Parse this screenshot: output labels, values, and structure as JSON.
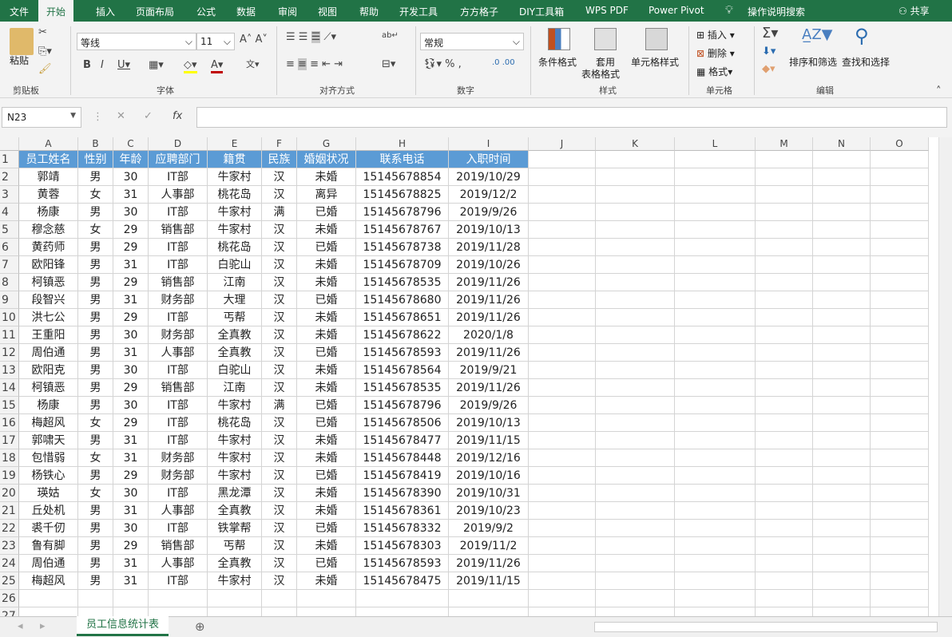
{
  "tabs": [
    "文件",
    "开始",
    "插入",
    "页面布局",
    "公式",
    "数据",
    "审阅",
    "视图",
    "帮助",
    "开发工具",
    "方方格子",
    "DIY工具箱",
    "WPS PDF",
    "Power Pivot"
  ],
  "search_label": "操作说明搜索",
  "share_label": "共享",
  "ribbon": {
    "paste": "粘贴",
    "clipboard": "剪贴板",
    "font_name": "等线",
    "font_size": "11",
    "font_group": "字体",
    "align_group": "对齐方式",
    "number_format": "常规",
    "number_group": "数字",
    "cond_format": "条件格式",
    "table_format_1": "套用",
    "table_format_2": "表格格式",
    "cell_style": "单元格样式",
    "styles_group": "样式",
    "insert": "插入",
    "delete": "删除",
    "format": "格式",
    "cells_group": "单元格",
    "sort_filter": "排序和筛选",
    "find_select": "查找和选择",
    "edit_group": "编辑"
  },
  "formula_bar": {
    "name_box": "N23",
    "formula": ""
  },
  "columns": [
    "A",
    "B",
    "C",
    "D",
    "E",
    "F",
    "G",
    "H",
    "I",
    "J",
    "K",
    "L",
    "M",
    "N",
    "O"
  ],
  "header_fill": "#5b9bd5",
  "table": {
    "headers": [
      "员工姓名",
      "性别",
      "年龄",
      "应聘部门",
      "籍贯",
      "民族",
      "婚姻状况",
      "联系电话",
      "入职时间"
    ],
    "rows": [
      [
        "郭靖",
        "男",
        "30",
        "IT部",
        "牛家村",
        "汉",
        "未婚",
        "15145678854",
        "2019/10/29"
      ],
      [
        "黄蓉",
        "女",
        "31",
        "人事部",
        "桃花岛",
        "汉",
        "离异",
        "15145678825",
        "2019/12/2"
      ],
      [
        "杨康",
        "男",
        "30",
        "IT部",
        "牛家村",
        "满",
        "已婚",
        "15145678796",
        "2019/9/26"
      ],
      [
        "穆念慈",
        "女",
        "29",
        "销售部",
        "牛家村",
        "汉",
        "未婚",
        "15145678767",
        "2019/10/13"
      ],
      [
        "黄药师",
        "男",
        "29",
        "IT部",
        "桃花岛",
        "汉",
        "已婚",
        "15145678738",
        "2019/11/28"
      ],
      [
        "欧阳锋",
        "男",
        "31",
        "IT部",
        "白驼山",
        "汉",
        "未婚",
        "15145678709",
        "2019/10/26"
      ],
      [
        "柯镇恶",
        "男",
        "29",
        "销售部",
        "江南",
        "汉",
        "未婚",
        "15145678535",
        "2019/11/26"
      ],
      [
        "段智兴",
        "男",
        "31",
        "财务部",
        "大理",
        "汉",
        "已婚",
        "15145678680",
        "2019/11/26"
      ],
      [
        "洪七公",
        "男",
        "29",
        "IT部",
        "丐帮",
        "汉",
        "未婚",
        "15145678651",
        "2019/11/26"
      ],
      [
        "王重阳",
        "男",
        "30",
        "财务部",
        "全真教",
        "汉",
        "未婚",
        "15145678622",
        "2020/1/8"
      ],
      [
        "周伯通",
        "男",
        "31",
        "人事部",
        "全真教",
        "汉",
        "已婚",
        "15145678593",
        "2019/11/26"
      ],
      [
        "欧阳克",
        "男",
        "30",
        "IT部",
        "白驼山",
        "汉",
        "未婚",
        "15145678564",
        "2019/9/21"
      ],
      [
        "柯镇恶",
        "男",
        "29",
        "销售部",
        "江南",
        "汉",
        "未婚",
        "15145678535",
        "2019/11/26"
      ],
      [
        "杨康",
        "男",
        "30",
        "IT部",
        "牛家村",
        "满",
        "已婚",
        "15145678796",
        "2019/9/26"
      ],
      [
        "梅超风",
        "女",
        "29",
        "IT部",
        "桃花岛",
        "汉",
        "已婚",
        "15145678506",
        "2019/10/13"
      ],
      [
        "郭啸天",
        "男",
        "31",
        "IT部",
        "牛家村",
        "汉",
        "未婚",
        "15145678477",
        "2019/11/15"
      ],
      [
        "包惜弱",
        "女",
        "31",
        "财务部",
        "牛家村",
        "汉",
        "未婚",
        "15145678448",
        "2019/12/16"
      ],
      [
        "杨铁心",
        "男",
        "29",
        "财务部",
        "牛家村",
        "汉",
        "已婚",
        "15145678419",
        "2019/10/16"
      ],
      [
        "瑛姑",
        "女",
        "30",
        "IT部",
        "黑龙潭",
        "汉",
        "未婚",
        "15145678390",
        "2019/10/31"
      ],
      [
        "丘处机",
        "男",
        "31",
        "人事部",
        "全真教",
        "汉",
        "未婚",
        "15145678361",
        "2019/10/23"
      ],
      [
        "裘千仞",
        "男",
        "30",
        "IT部",
        "铁掌帮",
        "汉",
        "已婚",
        "15145678332",
        "2019/9/2"
      ],
      [
        "鲁有脚",
        "男",
        "29",
        "销售部",
        "丐帮",
        "汉",
        "未婚",
        "15145678303",
        "2019/11/2"
      ],
      [
        "周伯通",
        "男",
        "31",
        "人事部",
        "全真教",
        "汉",
        "已婚",
        "15145678593",
        "2019/11/26"
      ],
      [
        "梅超风",
        "男",
        "31",
        "IT部",
        "牛家村",
        "汉",
        "未婚",
        "15145678475",
        "2019/11/15"
      ]
    ]
  },
  "row_numbers": [
    "1",
    "2",
    "3",
    "4",
    "5",
    "6",
    "7",
    "8",
    "9",
    "10",
    "11",
    "12",
    "13",
    "14",
    "15",
    "16",
    "17",
    "18",
    "19",
    "20",
    "21",
    "22",
    "23",
    "24",
    "25",
    "26",
    "27"
  ],
  "sheet_tab": "员工信息统计表"
}
